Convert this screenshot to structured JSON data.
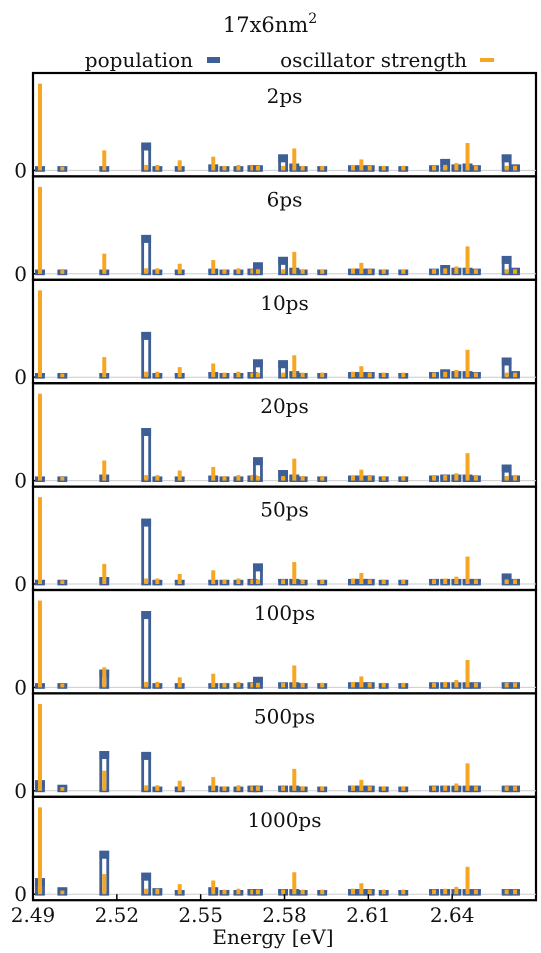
{
  "chart_data": {
    "type": "bar",
    "title": "17x6nm",
    "title_superscript": "2",
    "xlabel": "Energy [eV]",
    "ylabel": "",
    "xlim": [
      2.49,
      2.67
    ],
    "x_ticks": [
      "2.49",
      "2.52",
      "2.55",
      "2.58",
      "2.61",
      "2.64"
    ],
    "y_tick_label": "0",
    "legend": {
      "placement": "top",
      "entries": [
        {
          "name": "population",
          "color": "#3d5f95"
        },
        {
          "name": "oscillator strength",
          "color": "#f5a623"
        }
      ]
    },
    "colors": {
      "population": "#3d5f95",
      "oscillator": "#f5a623",
      "zero_line": "#cccccc"
    },
    "energies": [
      2.4925,
      2.5005,
      2.5155,
      2.5305,
      2.5345,
      2.5425,
      2.5545,
      2.5585,
      2.5635,
      2.5685,
      2.5705,
      2.5795,
      2.5835,
      2.5865,
      2.5935,
      2.6045,
      2.6075,
      2.6105,
      2.6155,
      2.6225,
      2.6335,
      2.6375,
      2.6415,
      2.6455,
      2.6485,
      2.6595,
      2.6625
    ],
    "oscillator_strength": [
      0.95,
      0.04,
      0.22,
      0.06,
      0.06,
      0.11,
      0.15,
      0.05,
      0.06,
      0.05,
      0.05,
      0.05,
      0.24,
      0.05,
      0.05,
      0.06,
      0.12,
      0.05,
      0.05,
      0.05,
      0.05,
      0.06,
      0.08,
      0.3,
      0.05,
      0.05,
      0.05
    ],
    "panels": [
      {
        "label": "2ps",
        "population": [
          0.03,
          0.03,
          0.03,
          0.29,
          0.03,
          0.03,
          0.05,
          0.03,
          0.03,
          0.04,
          0.04,
          0.16,
          0.06,
          0.03,
          0.03,
          0.04,
          0.04,
          0.04,
          0.03,
          0.03,
          0.04,
          0.11,
          0.05,
          0.06,
          0.04,
          0.16,
          0.05
        ]
      },
      {
        "label": "6ps",
        "population": [
          0.03,
          0.03,
          0.03,
          0.41,
          0.03,
          0.03,
          0.04,
          0.03,
          0.03,
          0.04,
          0.11,
          0.17,
          0.05,
          0.03,
          0.03,
          0.04,
          0.04,
          0.04,
          0.03,
          0.03,
          0.04,
          0.08,
          0.05,
          0.05,
          0.04,
          0.18,
          0.05
        ]
      },
      {
        "label": "10ps",
        "population": [
          0.03,
          0.03,
          0.03,
          0.48,
          0.03,
          0.03,
          0.04,
          0.03,
          0.03,
          0.04,
          0.18,
          0.17,
          0.05,
          0.03,
          0.03,
          0.04,
          0.04,
          0.04,
          0.03,
          0.03,
          0.04,
          0.07,
          0.05,
          0.05,
          0.04,
          0.2,
          0.05
        ]
      },
      {
        "label": "20ps",
        "population": [
          0.03,
          0.03,
          0.05,
          0.56,
          0.03,
          0.03,
          0.04,
          0.03,
          0.03,
          0.04,
          0.24,
          0.1,
          0.05,
          0.03,
          0.03,
          0.04,
          0.04,
          0.04,
          0.03,
          0.03,
          0.04,
          0.05,
          0.05,
          0.05,
          0.04,
          0.16,
          0.04
        ]
      },
      {
        "label": "50ps",
        "population": [
          0.03,
          0.03,
          0.06,
          0.7,
          0.03,
          0.03,
          0.03,
          0.03,
          0.03,
          0.04,
          0.21,
          0.04,
          0.04,
          0.03,
          0.03,
          0.04,
          0.04,
          0.04,
          0.03,
          0.03,
          0.04,
          0.04,
          0.04,
          0.04,
          0.04,
          0.1,
          0.04
        ]
      },
      {
        "label": "100ps",
        "population": [
          0.03,
          0.03,
          0.18,
          0.82,
          0.03,
          0.03,
          0.03,
          0.03,
          0.03,
          0.04,
          0.1,
          0.04,
          0.04,
          0.03,
          0.03,
          0.04,
          0.04,
          0.04,
          0.03,
          0.03,
          0.04,
          0.04,
          0.04,
          0.04,
          0.04,
          0.04,
          0.04
        ]
      },
      {
        "label": "500ps",
        "population": [
          0.1,
          0.05,
          0.42,
          0.41,
          0.03,
          0.03,
          0.04,
          0.03,
          0.03,
          0.04,
          0.04,
          0.04,
          0.04,
          0.03,
          0.03,
          0.04,
          0.04,
          0.04,
          0.03,
          0.03,
          0.04,
          0.04,
          0.04,
          0.04,
          0.04,
          0.04,
          0.04
        ]
      },
      {
        "label": "1000ps",
        "population": [
          0.16,
          0.06,
          0.46,
          0.22,
          0.05,
          0.03,
          0.06,
          0.03,
          0.03,
          0.04,
          0.04,
          0.04,
          0.04,
          0.03,
          0.03,
          0.04,
          0.04,
          0.04,
          0.03,
          0.03,
          0.04,
          0.04,
          0.04,
          0.04,
          0.04,
          0.04,
          0.04
        ]
      }
    ]
  }
}
